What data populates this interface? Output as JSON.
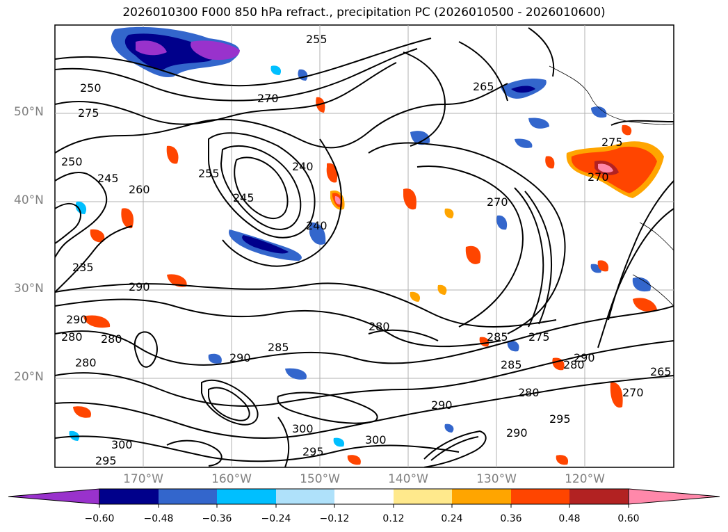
{
  "title": "2026010300 F000 850 hPa refract., precipitation PC (2026010500 - 2026010600)",
  "map": {
    "lat_labels": [
      "50°N",
      "40°N",
      "30°N",
      "20°N"
    ],
    "lon_labels": [
      "170°W",
      "160°W",
      "150°W",
      "140°W",
      "130°W",
      "120°W"
    ],
    "contour_labels": [
      "250",
      "255",
      "270",
      "275",
      "260",
      "265",
      "270",
      "275",
      "250",
      "245",
      "255",
      "245",
      "240",
      "240",
      "270",
      "235",
      "290",
      "290",
      "280",
      "280",
      "280",
      "285",
      "285",
      "290",
      "280",
      "285",
      "275",
      "280",
      "290",
      "265",
      "270",
      "300",
      "295",
      "295",
      "290",
      "300",
      "300",
      "280",
      "295",
      "290"
    ],
    "grid": true
  },
  "colorbar": {
    "tick_labels": [
      "−0.60",
      "−0.48",
      "−0.36",
      "−0.24",
      "−0.12",
      "0.12",
      "0.24",
      "0.36",
      "0.48",
      "0.60"
    ],
    "colors": [
      "#9932cc",
      "#00008b",
      "#3366cc",
      "#00bfff",
      "#afe1fa",
      "#ffffff",
      "#ffe98c",
      "#ffa500",
      "#ff4500",
      "#b22222",
      "#ff88aa"
    ],
    "extend": "both"
  }
}
